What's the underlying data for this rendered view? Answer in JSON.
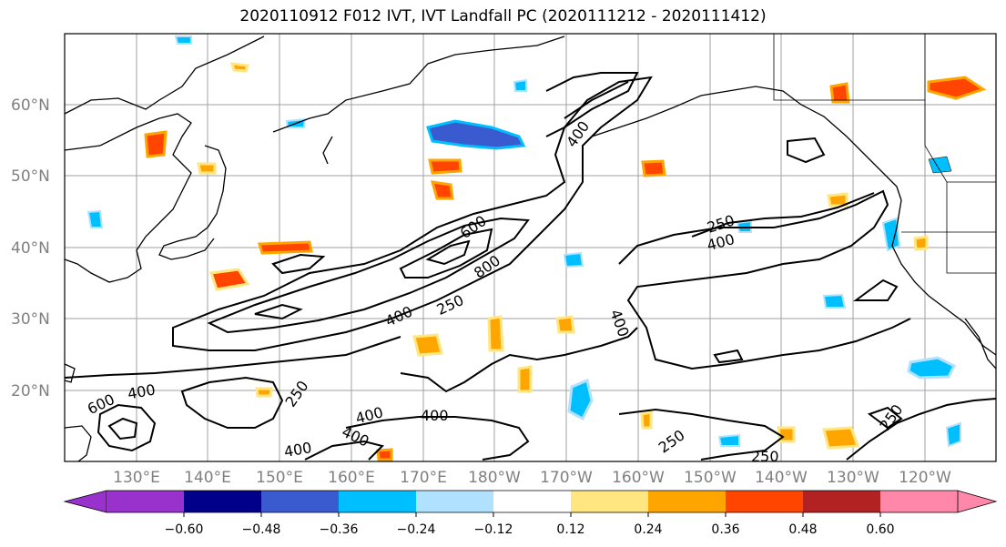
{
  "title": "2020110912 F012 IVT, IVT Landfall PC (2020111212 - 2020111412)",
  "lat_labels": [
    "60°N",
    "50°N",
    "40°N",
    "30°N",
    "20°N"
  ],
  "lon_labels": [
    "130°E",
    "140°E",
    "150°E",
    "160°E",
    "170°E",
    "180°W",
    "170°W",
    "160°W",
    "150°W",
    "140°W",
    "130°W",
    "120°W"
  ],
  "contour_labels": [
    "400",
    "600",
    "800",
    "250",
    "400",
    "250",
    "400",
    "400",
    "600",
    "400",
    "250",
    "400",
    "400",
    "400",
    "400",
    "250",
    "250"
  ],
  "colorbar": {
    "ticks": [
      "−0.60",
      "−0.48",
      "−0.36",
      "−0.24",
      "−0.12",
      "0.12",
      "0.24",
      "0.36",
      "0.48",
      "0.60"
    ],
    "colors": [
      "#9932cc",
      "#00008b",
      "#3a5bcf",
      "#00bfff",
      "#b0e2ff",
      "#ffffff",
      "#ffe680",
      "#ffa500",
      "#ff4500",
      "#b22222",
      "#ff88aa"
    ]
  }
}
